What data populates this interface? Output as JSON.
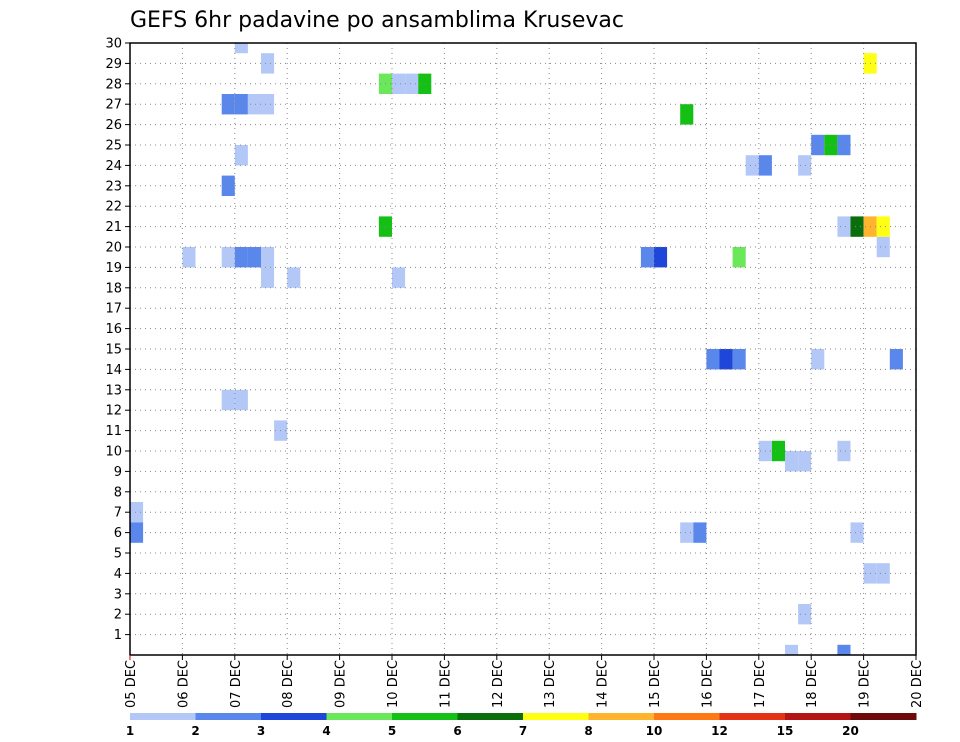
{
  "chart_data": {
    "type": "heatmap",
    "title": "GEFS 6hr padavine po ansamblima Krusevac",
    "xlabel": "",
    "ylabel": "",
    "x_tick_labels": [
      "05 DEC",
      "06 DEC",
      "07 DEC",
      "08 DEC",
      "09 DEC",
      "10 DEC",
      "11 DEC",
      "12 DEC",
      "13 DEC",
      "14 DEC",
      "15 DEC",
      "16 DEC",
      "17 DEC",
      "18 DEC",
      "19 DEC",
      "20 DEC"
    ],
    "y_tick_labels": [
      "1",
      "2",
      "3",
      "4",
      "5",
      "6",
      "7",
      "8",
      "9",
      "10",
      "11",
      "12",
      "13",
      "14",
      "15",
      "16",
      "17",
      "18",
      "19",
      "20",
      "21",
      "22",
      "23",
      "24",
      "25",
      "26",
      "27",
      "28",
      "29",
      "30"
    ],
    "x_range_days": [
      5,
      20
    ],
    "y_range": [
      0,
      30
    ],
    "time_step_hours": 6,
    "grid": true,
    "grid_style": "dotted",
    "colorbar": {
      "labels": [
        "1",
        "2",
        "3",
        "4",
        "5",
        "6",
        "7",
        "8",
        "10",
        "12",
        "15",
        "20"
      ],
      "colors": [
        "#b4c8f8",
        "#5a87ec",
        "#1e46d8",
        "#6ae85a",
        "#14c014",
        "#0a6e0a",
        "#ffff14",
        "#ffb42d",
        "#ff7814",
        "#e63214",
        "#b41414",
        "#6e0a0a"
      ]
    },
    "cells": [
      {
        "day": 5.0,
        "member": 7,
        "level": 1
      },
      {
        "day": 5.0,
        "member": 6,
        "level": 2
      },
      {
        "day": 6.0,
        "member": 19.5,
        "level": 1
      },
      {
        "day": 6.75,
        "member": 12.5,
        "level": 1
      },
      {
        "day": 6.75,
        "member": 27,
        "level": 2
      },
      {
        "day": 6.75,
        "member": 23,
        "level": 2
      },
      {
        "day": 6.75,
        "member": 19.5,
        "level": 1
      },
      {
        "day": 7.0,
        "member": 30,
        "level": 1
      },
      {
        "day": 7.0,
        "member": 27,
        "level": 2
      },
      {
        "day": 7.0,
        "member": 24.5,
        "level": 1
      },
      {
        "day": 7.0,
        "member": 19.5,
        "level": 2
      },
      {
        "day": 7.0,
        "member": 12.5,
        "level": 1
      },
      {
        "day": 7.25,
        "member": 27,
        "level": 1
      },
      {
        "day": 7.25,
        "member": 19.5,
        "level": 2
      },
      {
        "day": 7.5,
        "member": 29,
        "level": 1
      },
      {
        "day": 7.5,
        "member": 27,
        "level": 1
      },
      {
        "day": 7.5,
        "member": 19.5,
        "level": 1
      },
      {
        "day": 7.5,
        "member": 18.5,
        "level": 1
      },
      {
        "day": 7.75,
        "member": 11,
        "level": 1
      },
      {
        "day": 8.0,
        "member": 18.5,
        "level": 1
      },
      {
        "day": 9.75,
        "member": 28,
        "level": 4
      },
      {
        "day": 9.75,
        "member": 21,
        "level": 5
      },
      {
        "day": 10.0,
        "member": 28,
        "level": 1
      },
      {
        "day": 10.0,
        "member": 18.5,
        "level": 1
      },
      {
        "day": 10.25,
        "member": 28,
        "level": 1
      },
      {
        "day": 10.5,
        "member": 28,
        "level": 5
      },
      {
        "day": 14.75,
        "member": 19.5,
        "level": 2
      },
      {
        "day": 15.0,
        "member": 19.5,
        "level": 3
      },
      {
        "day": 15.5,
        "member": 26.5,
        "level": 5
      },
      {
        "day": 15.5,
        "member": 6,
        "level": 1
      },
      {
        "day": 15.75,
        "member": 6,
        "level": 2
      },
      {
        "day": 16.0,
        "member": 14.5,
        "level": 2
      },
      {
        "day": 16.25,
        "member": 14.5,
        "level": 3
      },
      {
        "day": 16.5,
        "member": 14.5,
        "level": 2
      },
      {
        "day": 16.5,
        "member": 19.5,
        "level": 4
      },
      {
        "day": 16.75,
        "member": 24,
        "level": 1
      },
      {
        "day": 17.0,
        "member": 24,
        "level": 2
      },
      {
        "day": 17.0,
        "member": 10,
        "level": 1
      },
      {
        "day": 17.25,
        "member": 10,
        "level": 5
      },
      {
        "day": 17.5,
        "member": 9.5,
        "level": 1
      },
      {
        "day": 17.5,
        "member": 0,
        "level": 1
      },
      {
        "day": 17.75,
        "member": 24,
        "level": 1
      },
      {
        "day": 17.75,
        "member": 9.5,
        "level": 1
      },
      {
        "day": 17.75,
        "member": 2,
        "level": 1
      },
      {
        "day": 18.0,
        "member": 25,
        "level": 2
      },
      {
        "day": 18.0,
        "member": 14.5,
        "level": 1
      },
      {
        "day": 18.25,
        "member": 25,
        "level": 5
      },
      {
        "day": 18.5,
        "member": 25,
        "level": 2
      },
      {
        "day": 18.5,
        "member": 21,
        "level": 1
      },
      {
        "day": 18.5,
        "member": 10,
        "level": 1
      },
      {
        "day": 18.5,
        "member": 0,
        "level": 2
      },
      {
        "day": 18.75,
        "member": 21,
        "level": 6
      },
      {
        "day": 18.75,
        "member": 6,
        "level": 1
      },
      {
        "day": 19.0,
        "member": 29,
        "level": 7
      },
      {
        "day": 19.0,
        "member": 21,
        "level": 8
      },
      {
        "day": 19.0,
        "member": 4,
        "level": 1
      },
      {
        "day": 19.25,
        "member": 21,
        "level": 7
      },
      {
        "day": 19.25,
        "member": 20,
        "level": 1
      },
      {
        "day": 19.25,
        "member": 4,
        "level": 1
      },
      {
        "day": 19.5,
        "member": 14.5,
        "level": 2
      }
    ]
  }
}
